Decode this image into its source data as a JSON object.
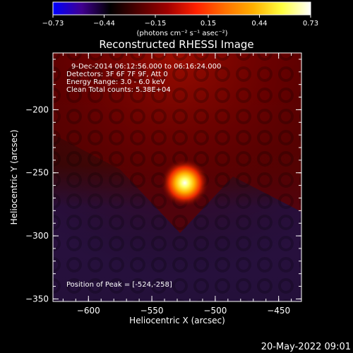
{
  "chart_data": {
    "type": "heatmap",
    "title": "Reconstructed RHESSI Image",
    "xlabel": "Heliocentric X (arcsec)",
    "ylabel": "Heliocentric Y (arcsec)",
    "xlim": [
      -628,
      -432
    ],
    "ylim": [
      -352,
      -155
    ],
    "x_ticks": [
      -600,
      -550,
      -500,
      -450
    ],
    "y_ticks": [
      -200,
      -250,
      -300,
      -350
    ],
    "x_tick_labels": [
      "−600",
      "−550",
      "−500",
      "−450"
    ],
    "y_tick_labels": [
      "−200",
      "−250",
      "−300",
      "−350"
    ],
    "annotations": [
      "9-Dec-2014 06:12:56.000 to 06:16:24.000",
      "Detectors: 3F 6F 7F 9F, Att 0",
      "Energy Range: 3.0 - 6.0 keV",
      "Clean    Total counts: 5.38E+04"
    ],
    "peak_label": "Position of Peak = [-524,-258]",
    "peak": {
      "x": -524,
      "y": -258,
      "value": 0.73
    },
    "colorbar": {
      "min": -0.73,
      "max": 0.73,
      "tick_values": [
        -0.73,
        -0.44,
        -0.15,
        0.15,
        0.44,
        0.73
      ],
      "tick_labels": [
        "−0.73",
        "−0.44",
        "−0.15",
        "0.15",
        "0.44",
        "0.73"
      ],
      "unit_label": "(photons cm⁻² s⁻¹ asec⁻²)",
      "colors": [
        "#0000ff",
        "#400090",
        "#000000",
        "#500000",
        "#a00000",
        "#ff2000",
        "#ff7000",
        "#ffb000",
        "#ffff40",
        "#ffffff"
      ]
    },
    "background_colors": {
      "upper_region": "#5a0000",
      "lower_region": "#2a1040"
    }
  },
  "footer": {
    "timestamp": "20-May-2022 09:01"
  }
}
